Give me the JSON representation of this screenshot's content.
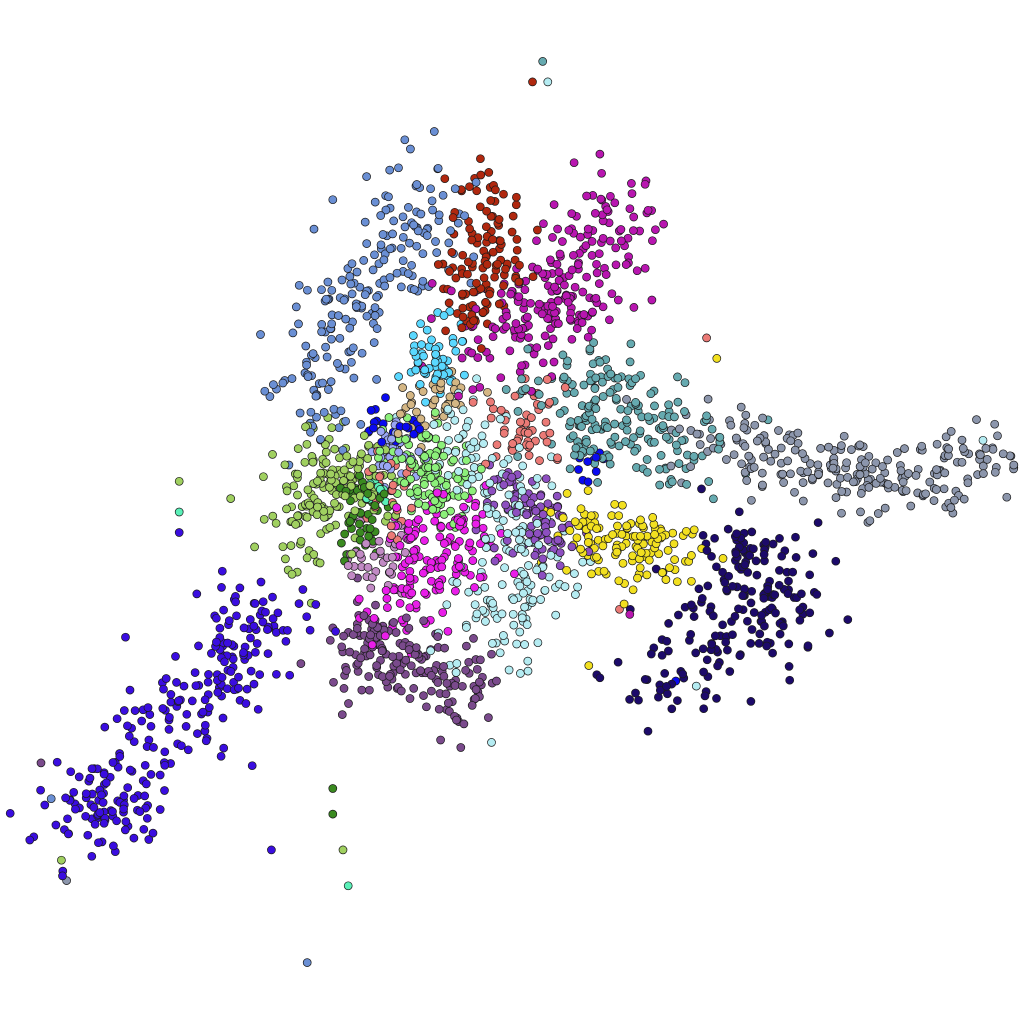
{
  "chart_data": {
    "type": "scatter",
    "title": "",
    "xlabel": "",
    "ylabel": "",
    "axes_visible": false,
    "grid": false,
    "legend": "none",
    "xlim": [
      0,
      100
    ],
    "ylim": [
      0,
      100
    ],
    "marker": "circle",
    "marker_edge_color": "#1a1a1a",
    "clusters": [
      {
        "color": "#3a0de0",
        "centers": [
          [
            22,
            35
          ],
          [
            17,
            30
          ],
          [
            12,
            23
          ],
          [
            25,
            39
          ],
          [
            9,
            20
          ]
        ],
        "spread": [
          2.8,
          2.4
        ],
        "count": 260
      },
      {
        "color": "#7a4a8c",
        "centers": [
          [
            39,
            35
          ],
          [
            44,
            33
          ],
          [
            36,
            37
          ]
        ],
        "spread": [
          2.5,
          2.0
        ],
        "count": 170
      },
      {
        "color": "#e91ee9",
        "centers": [
          [
            42,
            46
          ],
          [
            40,
            42
          ],
          [
            45,
            48
          ]
        ],
        "spread": [
          2.2,
          2.4
        ],
        "count": 150
      },
      {
        "color": "#b5ecf2",
        "centers": [
          [
            48,
            40
          ],
          [
            50,
            50
          ],
          [
            45,
            56
          ],
          [
            52,
            44
          ]
        ],
        "spread": [
          2.4,
          3.0
        ],
        "count": 210
      },
      {
        "color": "#8cf07a",
        "centers": [
          [
            43,
            52
          ],
          [
            41,
            55
          ]
        ],
        "spread": [
          1.8,
          2.2
        ],
        "count": 120
      },
      {
        "color": "#eb7a76",
        "centers": [
          [
            51,
            57
          ],
          [
            38,
            52
          ],
          [
            51,
            60
          ]
        ],
        "spread": [
          1.6,
          1.8
        ],
        "count": 80
      },
      {
        "color": "#8d4fc0",
        "centers": [
          [
            51,
            51
          ],
          [
            54,
            48
          ]
        ],
        "spread": [
          2.0,
          1.6
        ],
        "count": 90
      },
      {
        "color": "#f2e020",
        "centers": [
          [
            61,
            47
          ],
          [
            58,
            48
          ],
          [
            64,
            46
          ]
        ],
        "spread": [
          2.4,
          1.7
        ],
        "count": 130
      },
      {
        "color": "#1c0a6a",
        "centers": [
          [
            72,
            46
          ],
          [
            75,
            43
          ],
          [
            70,
            38
          ],
          [
            66,
            34
          ],
          [
            76,
            40
          ]
        ],
        "spread": [
          3.0,
          2.6
        ],
        "count": 200
      },
      {
        "color": "#66aab0",
        "centers": [
          [
            58,
            58
          ],
          [
            61,
            60
          ],
          [
            65,
            56
          ],
          [
            56,
            62
          ]
        ],
        "spread": [
          2.8,
          2.2
        ],
        "count": 190
      },
      {
        "color": "#8c96ac",
        "centers": [
          [
            78,
            55
          ],
          [
            84,
            54
          ],
          [
            90,
            53
          ],
          [
            94,
            55
          ],
          [
            72,
            57
          ]
        ],
        "spread": [
          3.2,
          1.9
        ],
        "count": 230
      },
      {
        "color": "#b816b0",
        "centers": [
          [
            53,
            70
          ],
          [
            56,
            73
          ],
          [
            60,
            78
          ],
          [
            49,
            68
          ]
        ],
        "spread": [
          2.8,
          2.8
        ],
        "count": 230
      },
      {
        "color": "#b0280f",
        "centers": [
          [
            47,
            74
          ],
          [
            48,
            79
          ],
          [
            46,
            71
          ]
        ],
        "spread": [
          1.8,
          2.4
        ],
        "count": 120
      },
      {
        "color": "#6a8fd4",
        "centers": [
          [
            35,
            72
          ],
          [
            39,
            75
          ],
          [
            41,
            80
          ],
          [
            30,
            61
          ],
          [
            33,
            68
          ]
        ],
        "spread": [
          2.2,
          3.0
        ],
        "count": 200
      },
      {
        "color": "#5ad8ff",
        "centers": [
          [
            42,
            64
          ],
          [
            43,
            66
          ]
        ],
        "spread": [
          1.4,
          1.6
        ],
        "count": 60
      },
      {
        "color": "#d4b684",
        "centers": [
          [
            41,
            60
          ],
          [
            44,
            62
          ]
        ],
        "spread": [
          1.4,
          1.2
        ],
        "count": 40
      },
      {
        "color": "#a0d060",
        "centers": [
          [
            31,
            52
          ],
          [
            33,
            55
          ],
          [
            29,
            49
          ],
          [
            35,
            53
          ]
        ],
        "spread": [
          2.2,
          2.6
        ],
        "count": 170
      },
      {
        "color": "#3a8a20",
        "centers": [
          [
            35,
            49
          ],
          [
            36,
            51
          ]
        ],
        "spread": [
          1.2,
          1.6
        ],
        "count": 50
      },
      {
        "color": "#c18ac4",
        "centers": [
          [
            38,
            46
          ],
          [
            36,
            44
          ]
        ],
        "spread": [
          1.4,
          1.4
        ],
        "count": 40
      },
      {
        "color": "#9aa6f4",
        "centers": [
          [
            38,
            57
          ],
          [
            39,
            55
          ]
        ],
        "spread": [
          1.1,
          1.1
        ],
        "count": 35
      },
      {
        "color": "#0a0af0",
        "centers": [
          [
            37,
            59
          ],
          [
            40,
            58
          ],
          [
            58,
            55
          ]
        ],
        "spread": [
          0.8,
          0.8
        ],
        "count": 30
      },
      {
        "color": "#5af0b8",
        "centers": [
          [
            37,
            52
          ]
        ],
        "spread": [
          0.6,
          0.8
        ],
        "count": 12
      }
    ],
    "sparse_points": [
      [
        30,
        6,
        "#6a8fd4"
      ],
      [
        34,
        13.5,
        "#5af0b8"
      ],
      [
        33.5,
        17,
        "#a0d060"
      ],
      [
        32.5,
        23,
        "#3a8a20"
      ],
      [
        32.5,
        20.5,
        "#3a8a20"
      ],
      [
        26.5,
        17,
        "#3a0de0"
      ],
      [
        6.5,
        14,
        "#8c96ac"
      ],
      [
        6,
        16,
        "#a0d060"
      ],
      [
        5,
        22,
        "#6a8fd4"
      ],
      [
        4,
        25.5,
        "#7a4a8c"
      ],
      [
        53,
        94,
        "#66aab0"
      ],
      [
        53.5,
        92,
        "#b5ecf2"
      ],
      [
        52,
        92,
        "#b0280f"
      ],
      [
        63,
        82,
        "#b816b0"
      ],
      [
        69,
        67,
        "#eb7a76"
      ],
      [
        70,
        65,
        "#f2e020"
      ],
      [
        75,
        59,
        "#66aab0"
      ],
      [
        45,
        27,
        "#7a4a8c"
      ],
      [
        48,
        27.5,
        "#b5ecf2"
      ],
      [
        57.5,
        35,
        "#f2e020"
      ],
      [
        17.5,
        53,
        "#a0d060"
      ],
      [
        17.5,
        50,
        "#5af0b8"
      ],
      [
        17.5,
        48,
        "#3a0de0"
      ],
      [
        32.5,
        80.5,
        "#6a8fd4"
      ],
      [
        27,
        62,
        "#6a8fd4"
      ],
      [
        68,
        33,
        "#b5ecf2"
      ],
      [
        66,
        33.5,
        "#0a0af0"
      ],
      [
        60.5,
        40.5,
        "#eb7a76"
      ],
      [
        61.5,
        40,
        "#b816b0"
      ],
      [
        96,
        57,
        "#b5ecf2"
      ]
    ]
  }
}
